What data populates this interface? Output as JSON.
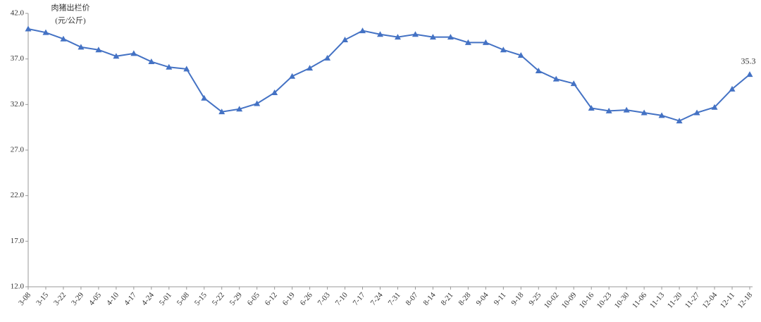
{
  "chart_data": {
    "type": "line",
    "y_label": [
      "肉猪出栏价",
      "(元/公斤)"
    ],
    "categories": [
      "3-08",
      "3-15",
      "3-22",
      "3-29",
      "4-05",
      "4-10",
      "4-17",
      "4-24",
      "5-01",
      "5-08",
      "5-15",
      "5-22",
      "5-29",
      "6-05",
      "6-12",
      "6-19",
      "6-26",
      "7-03",
      "7-10",
      "7-17",
      "7-24",
      "7-31",
      "8-07",
      "8-14",
      "8-21",
      "8-28",
      "9-04",
      "9-11",
      "9-18",
      "9-25",
      "10-02",
      "10-09",
      "10-16",
      "10-23",
      "10-30",
      "11-06",
      "11-13",
      "11-20",
      "11-27",
      "12-04",
      "12-11",
      "12-18"
    ],
    "series": [
      {
        "name": "肉猪出栏价",
        "color": "#4472c4",
        "values": [
          40.3,
          39.9,
          39.2,
          38.3,
          38.0,
          37.3,
          37.6,
          36.7,
          36.1,
          35.9,
          32.7,
          31.2,
          31.5,
          32.1,
          33.3,
          35.1,
          36.0,
          37.1,
          39.1,
          40.1,
          39.7,
          39.4,
          39.7,
          39.4,
          39.4,
          38.8,
          38.8,
          38.0,
          37.4,
          35.7,
          34.8,
          34.3,
          31.6,
          31.3,
          31.4,
          31.1,
          30.8,
          30.2,
          31.1,
          31.7,
          33.7,
          35.3
        ]
      }
    ],
    "ylim": [
      12,
      42
    ],
    "yticks": [
      {
        "value": 12,
        "label": "12.0"
      },
      {
        "value": 17,
        "label": "17.0"
      },
      {
        "value": 22,
        "label": "22.0"
      },
      {
        "value": 27,
        "label": "27.0"
      },
      {
        "value": 32,
        "label": "32.0"
      },
      {
        "value": 37,
        "label": "37.0"
      },
      {
        "value": 42,
        "label": "42.0"
      }
    ],
    "grid": false
  }
}
